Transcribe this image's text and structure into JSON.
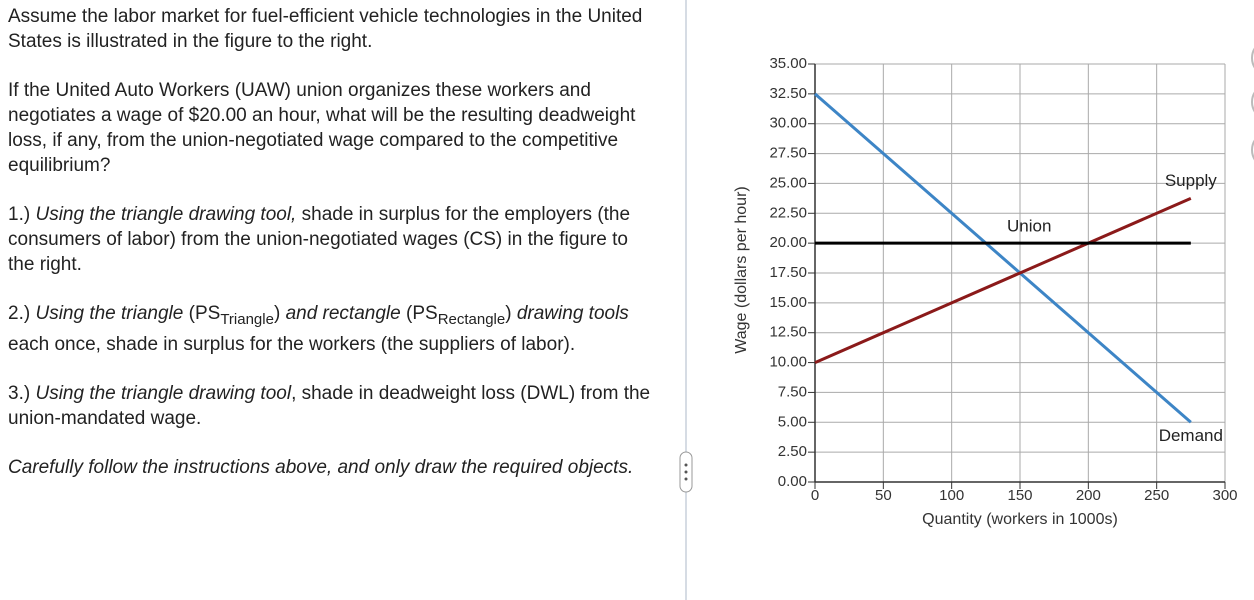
{
  "question": {
    "intro": "Assume the labor market for fuel-efficient vehicle technologies in the United States is illustrated in the figure to the right.",
    "prompt": "If the United Auto Workers (UAW) union organizes these workers and negotiates a wage of $20.00 an hour, what will be the resulting deadweight loss, if any, from the union-negotiated wage compared to the competitive equilibrium?",
    "steps": [
      {
        "number": "1.)",
        "tool": "Using the triangle drawing tool,",
        "text": "shade in surplus for the employers (the consumers of labor) from the union-negotiated wages (CS) in the figure to the right."
      },
      {
        "number": "2.)",
        "tool_a": "Using the triangle",
        "ps_a": "(PS",
        "sub_a": "Triangle",
        "close_a": ")",
        "tool_b": "and rectangle",
        "ps_b": "(PS",
        "sub_b": "Rectangle",
        "close_b": ")",
        "tool_c": "drawing tools",
        "text": "each once, shade in surplus for the workers (the suppliers of labor)."
      },
      {
        "number": "3.)",
        "tool": "Using the triangle drawing tool",
        "text": ", shade in deadweight loss (DWL) from the union-mandated wage."
      }
    ],
    "note": "Carefully follow the instructions above, and only draw the required objects."
  },
  "chart_data": {
    "type": "line",
    "x_label": "Quantity (workers in 1000s)",
    "y_label": "Wage (dollars per hour)",
    "xlim": [
      0,
      300
    ],
    "ylim": [
      0,
      35
    ],
    "xticks": [
      0,
      50,
      100,
      150,
      200,
      250,
      300
    ],
    "yticks": [
      {
        "value": 0,
        "label": "0.00"
      },
      {
        "value": 2.5,
        "label": "2.50"
      },
      {
        "value": 5,
        "label": "5.00"
      },
      {
        "value": 7.5,
        "label": "7.50"
      },
      {
        "value": 10,
        "label": "10.00"
      },
      {
        "value": 12.5,
        "label": "12.50"
      },
      {
        "value": 15,
        "label": "15.00"
      },
      {
        "value": 17.5,
        "label": "17.50"
      },
      {
        "value": 20,
        "label": "20.00"
      },
      {
        "value": 22.5,
        "label": "22.50"
      },
      {
        "value": 25,
        "label": "25.00"
      },
      {
        "value": 27.5,
        "label": "27.50"
      },
      {
        "value": 30,
        "label": "30.00"
      },
      {
        "value": 32.5,
        "label": "32.50"
      },
      {
        "value": 35,
        "label": "35.00"
      }
    ],
    "grid": true,
    "series": [
      {
        "name": "Demand",
        "color": "#3d85c6",
        "x": [
          0,
          275
        ],
        "values": [
          32.5,
          5
        ]
      },
      {
        "name": "Supply",
        "color": "#8b1a1a",
        "x": [
          0,
          275
        ],
        "values": [
          10,
          23.75
        ]
      },
      {
        "name": "Union",
        "color": "#000000",
        "x": [
          0,
          275
        ],
        "values": [
          20,
          20
        ]
      }
    ]
  }
}
